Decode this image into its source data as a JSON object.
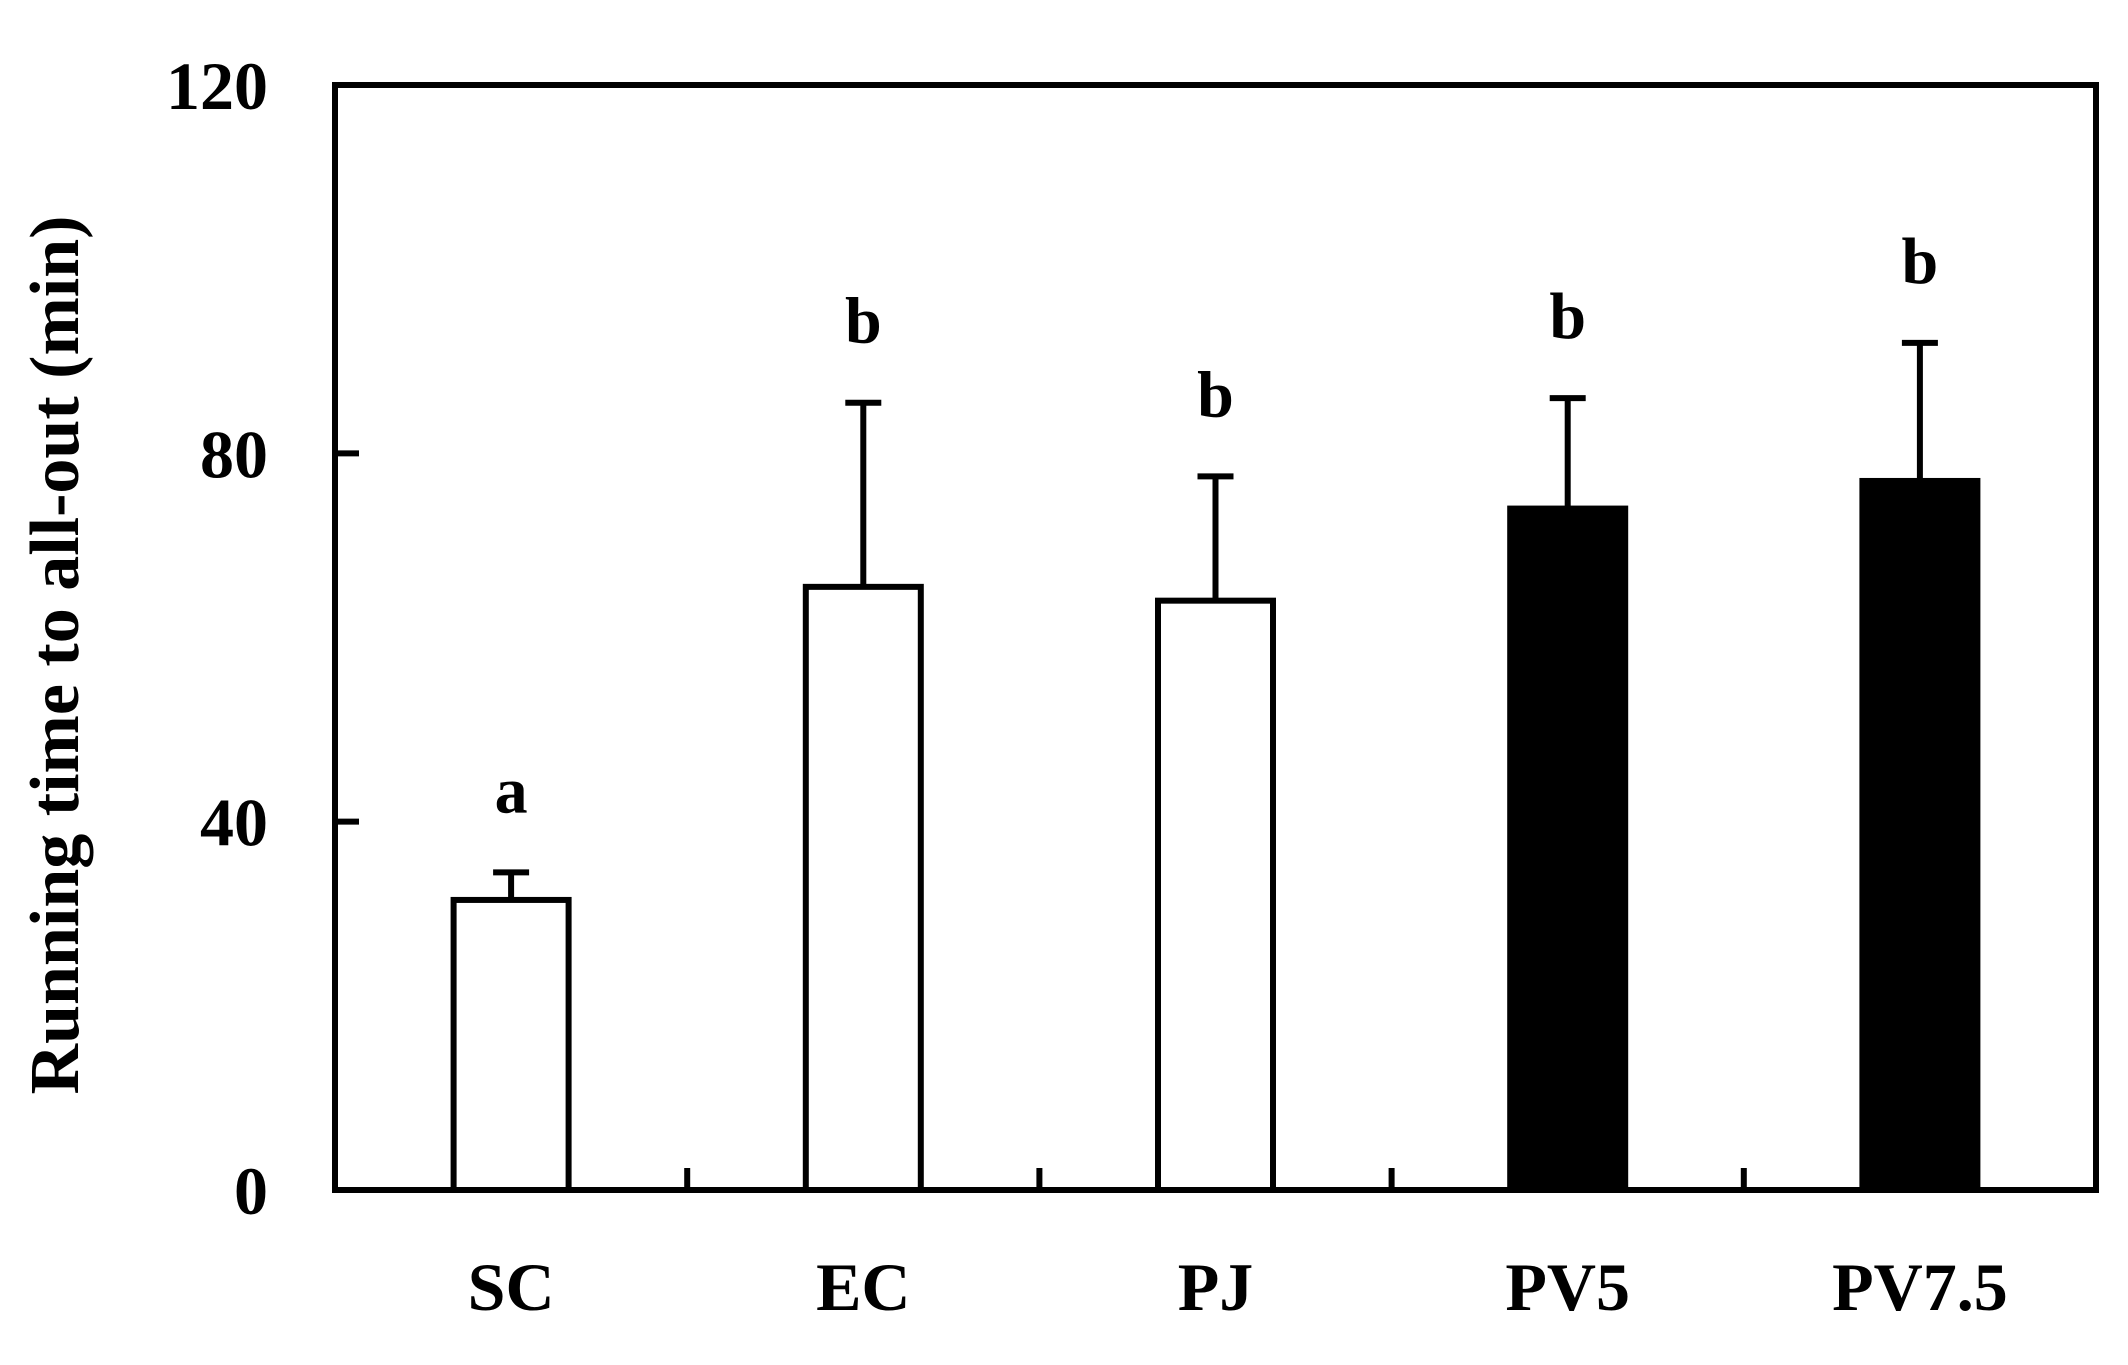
{
  "chart_data": {
    "type": "bar",
    "title": "",
    "xlabel": "",
    "ylabel": "Running time to all-out (min)",
    "ylim": [
      0,
      120
    ],
    "yticks": [
      0,
      40,
      80,
      120
    ],
    "grid": false,
    "legend": "none",
    "categories": [
      "SC",
      "EC",
      "PJ",
      "PV5",
      "PV7.5"
    ],
    "values": [
      31.5,
      65.5,
      64,
      74,
      77
    ],
    "errors": [
      3,
      20,
      13.5,
      12,
      15
    ],
    "significance_labels": [
      "a",
      "b",
      "b",
      "b",
      "b"
    ],
    "bar_fill_colors": [
      "#ffffff",
      "#ffffff",
      "#ffffff",
      "#000000",
      "#000000"
    ],
    "bar_edge_color": "#000000"
  }
}
